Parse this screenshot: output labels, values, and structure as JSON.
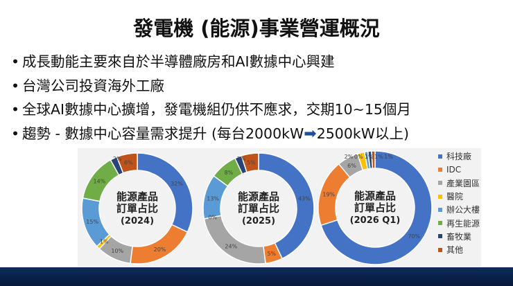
{
  "title": "發電機 (能源)事業營運概況",
  "bullets": [
    "成長動能主要來自於半導體廠房和AI數據中心興建",
    "台灣公司投資海外工廠",
    "全球AI數據中心擴增，發電機組仍供不應求，交期10~15個月"
  ],
  "bullet4": {
    "prefix": "趨勢 - 數據中心容量需求提升 (每台2000kW",
    "arrow": "➡",
    "suffix": "2500kW以上)"
  },
  "chart_data": {
    "type": "donut",
    "categories": [
      "科技廠",
      "IDC",
      "產業園區",
      "醫院",
      "辦公大樓",
      "再生能源",
      "畜牧業",
      "其他"
    ],
    "colors": [
      "#4472c4",
      "#ed7d31",
      "#a5a5a5",
      "#ffc000",
      "#5b9bd5",
      "#70ad47",
      "#264478",
      "#c0531a"
    ],
    "legend_position": "right",
    "charts": [
      {
        "center_label": [
          "能源產品",
          "訂單占比",
          "(2024)"
        ],
        "values": [
          32,
          20,
          10,
          1,
          15,
          14,
          2,
          6
        ]
      },
      {
        "center_label": [
          "能源產品",
          "訂單占比",
          "(2025)"
        ],
        "values": [
          43,
          5,
          24,
          0,
          13,
          8,
          2,
          5
        ]
      },
      {
        "center_label": [
          "能源產品",
          "訂單占比",
          "(2026 Q1)"
        ],
        "values": [
          70,
          19,
          6,
          2,
          1,
          0,
          1,
          1
        ]
      }
    ]
  }
}
